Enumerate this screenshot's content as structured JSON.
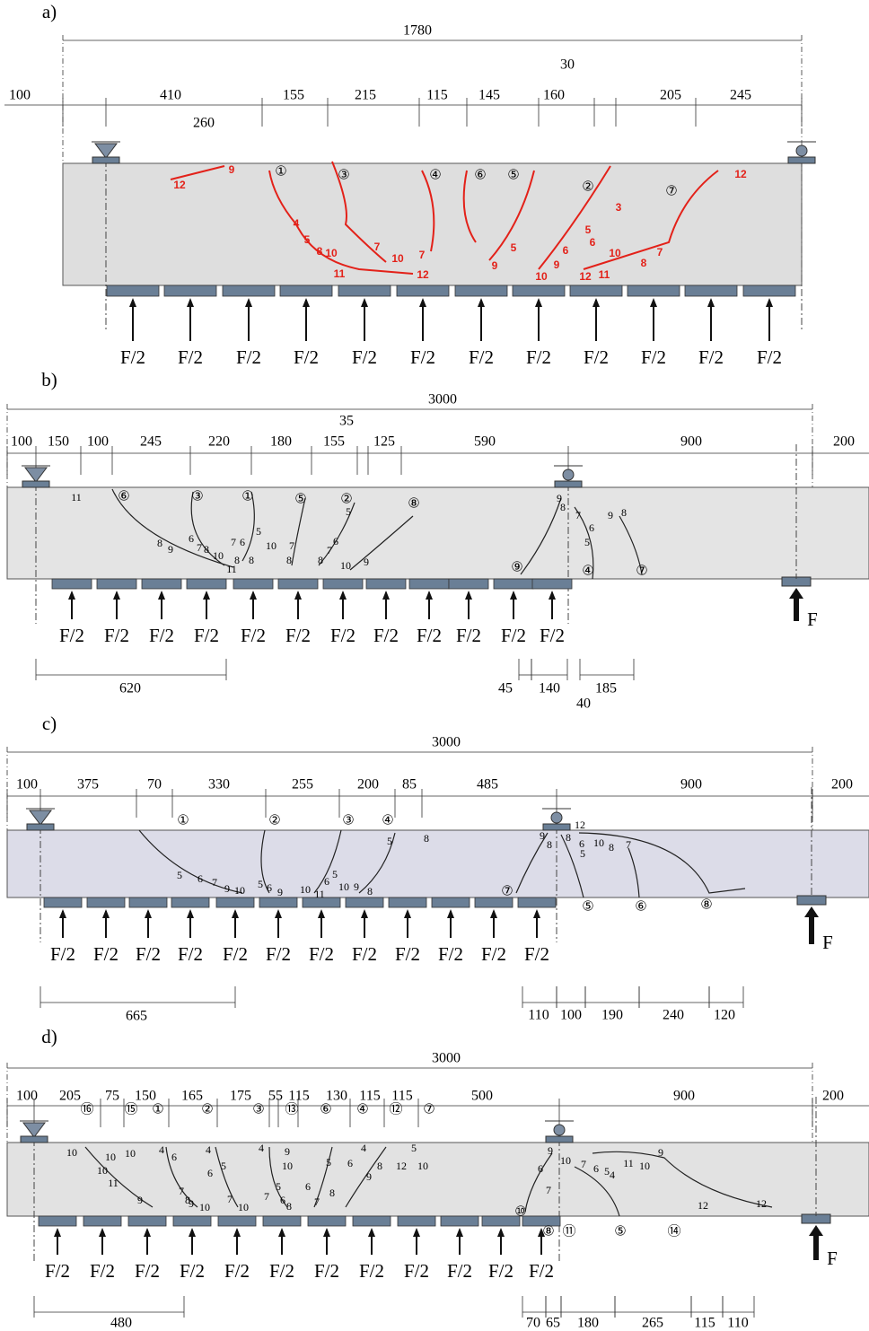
{
  "panels": [
    {
      "label": "a)",
      "total_dimension": "1780",
      "dimensions": [
        "100",
        "410",
        "155",
        "215",
        "115",
        "145",
        "160",
        "205",
        "245"
      ],
      "extra_dimensions": [
        "30",
        "260"
      ],
      "crack_numbers": [
        "①",
        "③",
        "④",
        "⑥",
        "⑤",
        "②",
        "⑦"
      ],
      "crack_stages": [
        "9",
        "12",
        "4",
        "5",
        "8",
        "10",
        "11",
        "7",
        "10",
        "7",
        "12",
        "5",
        "9",
        "5",
        "6",
        "3",
        "6",
        "9",
        "10",
        "12",
        "11",
        "10",
        "8",
        "7",
        "12"
      ],
      "loads": [
        "F/2",
        "F/2",
        "F/2",
        "F/2",
        "F/2",
        "F/2",
        "F/2",
        "F/2",
        "F/2",
        "F/2",
        "F/2",
        "F/2"
      ]
    },
    {
      "label": "b)",
      "total_dimension": "3000",
      "dimensions": [
        "100",
        "150",
        "100",
        "245",
        "220",
        "180",
        "155",
        "125",
        "590",
        "900",
        "200"
      ],
      "extra_dimensions": [
        "35"
      ],
      "crack_numbers": [
        "⑥",
        "③",
        "①",
        "⑤",
        "②",
        "⑧",
        "⑨",
        "④",
        "⑦"
      ],
      "crack_stages": [
        "11",
        "8",
        "9",
        "6",
        "7",
        "8",
        "10",
        "11",
        "7",
        "6",
        "5",
        "8",
        "8",
        "10",
        "7",
        "8",
        "6",
        "7",
        "8",
        "10",
        "9",
        "5",
        "9",
        "8",
        "7",
        "6",
        "9",
        "8",
        "5"
      ],
      "loads": [
        "F/2",
        "F/2",
        "F/2",
        "F/2",
        "F/2",
        "F/2",
        "F/2",
        "F/2",
        "F/2",
        "F/2",
        "F/2",
        "F/2"
      ],
      "reaction": "F",
      "bottom_dimensions": [
        "620",
        "45",
        "140",
        "185",
        "40"
      ]
    },
    {
      "label": "c)",
      "total_dimension": "3000",
      "dimensions": [
        "100",
        "375",
        "70",
        "330",
        "255",
        "200",
        "85",
        "485",
        "900",
        "200"
      ],
      "crack_numbers": [
        "①",
        "②",
        "③",
        "④",
        "⑦",
        "⑤",
        "⑥",
        "⑧"
      ],
      "crack_stages": [
        "5",
        "6",
        "7",
        "9",
        "10",
        "5",
        "6",
        "9",
        "10",
        "11",
        "6",
        "5",
        "10",
        "9",
        "8",
        "5",
        "8",
        "9",
        "8",
        "12",
        "8",
        "6",
        "5",
        "10",
        "8",
        "7"
      ],
      "loads": [
        "F/2",
        "F/2",
        "F/2",
        "F/2",
        "F/2",
        "F/2",
        "F/2",
        "F/2",
        "F/2",
        "F/2",
        "F/2",
        "F/2"
      ],
      "reaction": "F",
      "bottom_dimensions": [
        "665",
        "110",
        "100",
        "190",
        "240",
        "120"
      ]
    },
    {
      "label": "d)",
      "total_dimension": "3000",
      "dimensions": [
        "100",
        "205",
        "75",
        "150",
        "165",
        "175",
        "55",
        "115",
        "130",
        "115",
        "115",
        "500",
        "900",
        "200"
      ],
      "crack_numbers": [
        "⑯",
        "⑮",
        "①",
        "②",
        "③",
        "⑬",
        "⑥",
        "④",
        "⑫",
        "⑦",
        "⑩",
        "⑧",
        "⑪",
        "⑤",
        "⑭"
      ],
      "crack_stages": [
        "10",
        "10",
        "11",
        "9",
        "10",
        "10",
        "4",
        "6",
        "4",
        "5",
        "6",
        "7",
        "8",
        "9",
        "10",
        "7",
        "10",
        "4",
        "9",
        "10",
        "5",
        "7",
        "6",
        "8",
        "5",
        "6",
        "8",
        "7",
        "4",
        "6",
        "8",
        "9",
        "12",
        "5",
        "10",
        "9",
        "6",
        "7",
        "10",
        "7",
        "6",
        "5",
        "4",
        "11",
        "10",
        "9",
        "12",
        "12"
      ],
      "loads": [
        "F/2",
        "F/2",
        "F/2",
        "F/2",
        "F/2",
        "F/2",
        "F/2",
        "F/2",
        "F/2",
        "F/2",
        "F/2",
        "F/2"
      ],
      "reaction": "F",
      "bottom_dimensions": [
        "480",
        "70",
        "65",
        "180",
        "265",
        "115",
        "110"
      ]
    }
  ]
}
